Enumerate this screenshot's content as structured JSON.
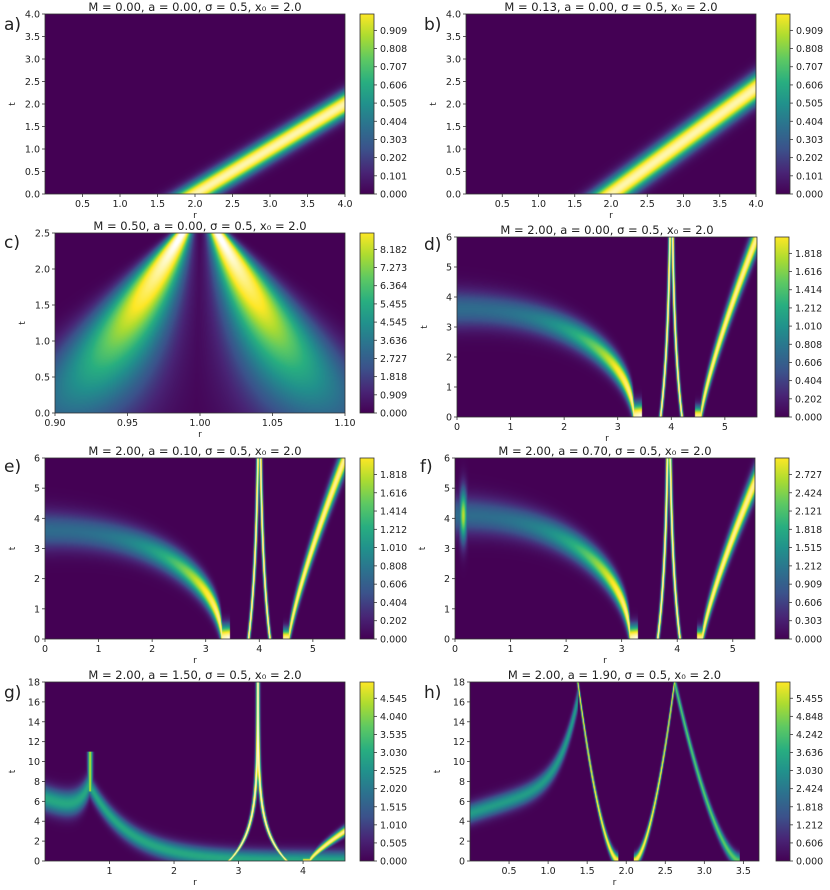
{
  "chart_data": [
    {
      "id": "a",
      "type": "heatmap",
      "panel_label": "a)",
      "title": "M = 0.00,  a = 0.00,  σ = 0.5,  x₀ = 2.0",
      "xlabel": "r",
      "ylabel": "t",
      "xlim": [
        0,
        4.0
      ],
      "ylim": [
        0,
        4.0
      ],
      "xticks": [
        "0.5",
        "1.0",
        "1.5",
        "2.0",
        "2.5",
        "3.0",
        "3.5",
        "4.0"
      ],
      "yticks": [
        "0.0",
        "0.5",
        "1.0",
        "1.5",
        "2.0",
        "2.5",
        "3.0",
        "3.5",
        "4.0"
      ],
      "colorbar_ticks": [
        "0.000",
        "0.101",
        "0.202",
        "0.303",
        "0.404",
        "0.505",
        "0.606",
        "0.707",
        "0.808",
        "0.909"
      ],
      "colorbar_max": 1.0,
      "features": [
        {
          "kind": "outgoing",
          "r_at_t0": 2.0,
          "slope_dr_dt": 1.0,
          "width": 0.5,
          "peak": 1.0
        }
      ]
    },
    {
      "id": "b",
      "type": "heatmap",
      "panel_label": "b)",
      "title": "M = 0.13,  a = 0.00,  σ = 0.5,  x₀ = 2.0",
      "xlabel": "r",
      "ylabel": "t",
      "xlim": [
        0,
        4.0
      ],
      "ylim": [
        0,
        4.0
      ],
      "xticks": [
        "0.5",
        "1.0",
        "1.5",
        "2.0",
        "2.5",
        "3.0",
        "3.5",
        "4.0"
      ],
      "yticks": [
        "0.0",
        "0.5",
        "1.0",
        "1.5",
        "2.0",
        "2.5",
        "3.0",
        "3.5",
        "4.0"
      ],
      "colorbar_ticks": [
        "0.000",
        "0.101",
        "0.202",
        "0.303",
        "0.404",
        "0.505",
        "0.606",
        "0.707",
        "0.808",
        "0.909"
      ],
      "colorbar_max": 1.0,
      "features": [
        {
          "kind": "outgoing",
          "r_at_t0": 2.0,
          "slope_dr_dt": 0.85,
          "width": 0.5,
          "peak": 1.0
        }
      ]
    },
    {
      "id": "c",
      "type": "heatmap",
      "panel_label": "c)",
      "title": "M = 0.50,  a = 0.00,  σ = 0.5,  x₀ = 2.0",
      "xlabel": "r",
      "ylabel": "t",
      "xlim": [
        0.9,
        1.1
      ],
      "ylim": [
        0,
        2.5
      ],
      "xticks": [
        "0.90",
        "0.95",
        "1.00",
        "1.05",
        "1.10"
      ],
      "yticks": [
        "0.0",
        "0.5",
        "1.0",
        "1.5",
        "2.0",
        "2.5"
      ],
      "colorbar_ticks": [
        "0.000",
        "0.909",
        "1.818",
        "2.727",
        "3.636",
        "4.545",
        "5.455",
        "6.364",
        "7.273",
        "8.182"
      ],
      "colorbar_max": 9.0,
      "features": [
        {
          "kind": "horizon_pair",
          "r_h": 1.0,
          "spread": 0.06,
          "sharp": 0.02
        }
      ]
    },
    {
      "id": "d",
      "type": "heatmap",
      "panel_label": "d)",
      "title": "M = 2.00,  a = 0.00,  σ = 0.5,  x₀ = 2.0",
      "xlabel": "r",
      "ylabel": "t",
      "xlim": [
        0,
        5.6
      ],
      "ylim": [
        0,
        6
      ],
      "xticks": [
        "0",
        "1",
        "2",
        "3",
        "4",
        "5"
      ],
      "yticks": [
        "0",
        "1",
        "2",
        "3",
        "4",
        "5",
        "6"
      ],
      "colorbar_ticks": [
        "0.000",
        "0.202",
        "0.404",
        "0.606",
        "0.808",
        "1.010",
        "1.212",
        "1.414",
        "1.616",
        "1.818"
      ],
      "colorbar_max": 2.0,
      "features": [
        {
          "kind": "ingoing_arc",
          "r_end": 3.3,
          "t_start": 3.6,
          "width": 0.3
        },
        {
          "kind": "spike_pair",
          "r_h": 4.0,
          "half_gap": 0.2
        },
        {
          "kind": "outgoing_curve",
          "r_start": 4.55,
          "r_end": 5.6,
          "t_end": 6.0
        }
      ]
    },
    {
      "id": "e",
      "type": "heatmap",
      "panel_label": "e)",
      "title": "M = 2.00,  a = 0.10,  σ = 0.5,  x₀ = 2.0",
      "xlabel": "r",
      "ylabel": "t",
      "xlim": [
        0,
        5.6
      ],
      "ylim": [
        0,
        6
      ],
      "xticks": [
        "0",
        "1",
        "2",
        "3",
        "4",
        "5"
      ],
      "yticks": [
        "0",
        "1",
        "2",
        "3",
        "4",
        "5",
        "6"
      ],
      "colorbar_ticks": [
        "0.000",
        "0.202",
        "0.404",
        "0.606",
        "0.808",
        "1.010",
        "1.212",
        "1.414",
        "1.616",
        "1.818"
      ],
      "colorbar_max": 2.0,
      "features": [
        {
          "kind": "ingoing_arc",
          "r_end": 3.3,
          "t_start": 3.6,
          "width": 0.3
        },
        {
          "kind": "spike_pair",
          "r_h": 4.0,
          "half_gap": 0.2
        },
        {
          "kind": "outgoing_curve",
          "r_start": 4.55,
          "r_end": 5.6,
          "t_end": 6.0
        }
      ]
    },
    {
      "id": "f",
      "type": "heatmap",
      "panel_label": "f)",
      "title": "M = 2.00,  a = 0.70,  σ = 0.5,  x₀ = 2.0",
      "xlabel": "r",
      "ylabel": "t",
      "xlim": [
        0,
        5.4
      ],
      "ylim": [
        0,
        6
      ],
      "xticks": [
        "0",
        "1",
        "2",
        "3",
        "4",
        "5"
      ],
      "yticks": [
        "0",
        "1",
        "2",
        "3",
        "4",
        "5",
        "6"
      ],
      "colorbar_ticks": [
        "0.000",
        "0.303",
        "0.606",
        "0.909",
        "1.212",
        "1.515",
        "1.818",
        "2.121",
        "2.424",
        "2.727"
      ],
      "colorbar_max": 3.0,
      "features": [
        {
          "kind": "ingoing_arc",
          "r_end": 3.15,
          "t_start": 4.1,
          "width": 0.3
        },
        {
          "kind": "spike_pair",
          "r_h": 3.85,
          "half_gap": 0.2
        },
        {
          "kind": "outgoing_curve",
          "r_start": 4.45,
          "r_end": 5.4,
          "t_end": 5.2
        },
        {
          "kind": "inner_spike",
          "r": 0.15,
          "t_top": 5.2
        }
      ]
    },
    {
      "id": "g",
      "type": "heatmap",
      "panel_label": "g)",
      "title": "M = 2.00,  a = 1.50,  σ = 0.5,  x₀ = 2.0",
      "xlabel": "r",
      "ylabel": "t",
      "xlim": [
        0,
        4.65
      ],
      "ylim": [
        0,
        18
      ],
      "xticks": [
        "1",
        "2",
        "3",
        "4"
      ],
      "yticks": [
        "0",
        "2",
        "4",
        "6",
        "8",
        "10",
        "12",
        "14",
        "16",
        "18"
      ],
      "colorbar_ticks": [
        "0.000",
        "0.505",
        "1.010",
        "1.515",
        "2.020",
        "2.525",
        "3.030",
        "3.535",
        "4.040",
        "4.545"
      ],
      "colorbar_max": 5.0,
      "features": [
        {
          "kind": "inner_cusp",
          "r": 0.7,
          "t_top": 11
        },
        {
          "kind": "spike_pair",
          "r_h": 3.3,
          "half_gap": 0.45
        },
        {
          "kind": "outgoing_curve",
          "r_start": 4.1,
          "r_end": 4.65,
          "t_end": 3.0
        }
      ]
    },
    {
      "id": "h",
      "type": "heatmap",
      "panel_label": "h)",
      "title": "M = 2.00,  a = 1.90,  σ = 0.5,  x₀ = 2.0",
      "xlabel": "r",
      "ylabel": "t",
      "xlim": [
        0,
        3.7
      ],
      "ylim": [
        0,
        18
      ],
      "xticks": [
        "0.5",
        "1.0",
        "1.5",
        "2.0",
        "2.5",
        "3.0",
        "3.5"
      ],
      "yticks": [
        "0",
        "2",
        "4",
        "6",
        "8",
        "10",
        "12",
        "14",
        "16",
        "18"
      ],
      "colorbar_ticks": [
        "0.000",
        "0.606",
        "1.212",
        "1.818",
        "2.424",
        "3.030",
        "3.636",
        "4.242",
        "4.848",
        "5.455"
      ],
      "colorbar_max": 6.0,
      "features": [
        {
          "kind": "double_horizon",
          "r1": 1.38,
          "r2": 2.62,
          "r_low1": 1.9,
          "r_low2": 2.1,
          "r_out": 3.45
        }
      ]
    }
  ]
}
